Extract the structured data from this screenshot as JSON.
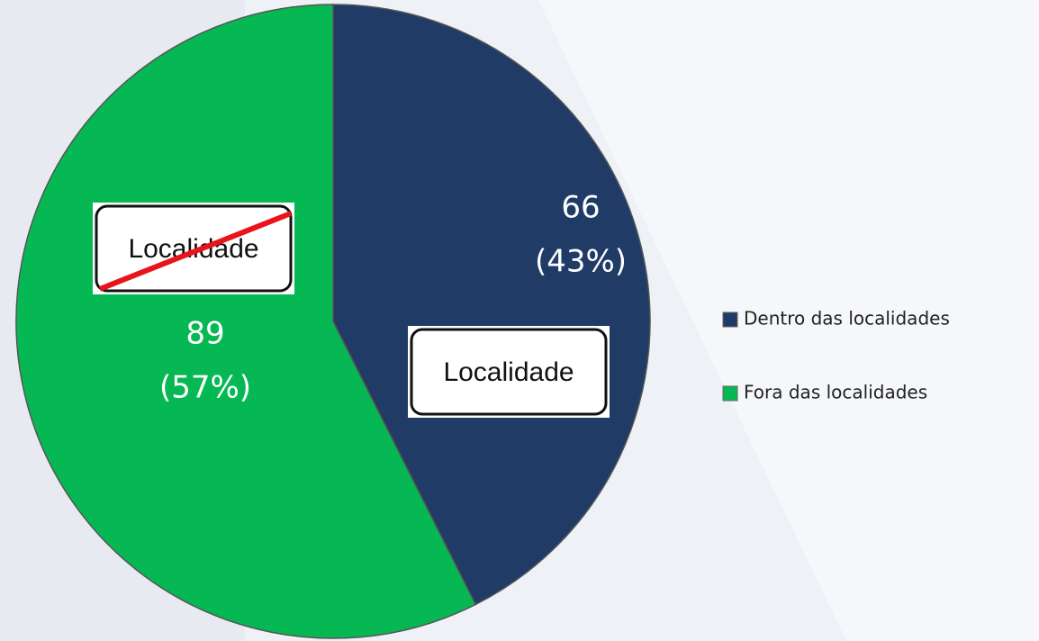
{
  "chart_data": {
    "type": "pie",
    "categories": [
      "Dentro das localidades",
      "Fora das localidades"
    ],
    "values": [
      66,
      89
    ],
    "value_labels": [
      [
        "66",
        "(43%)"
      ],
      [
        "89",
        "(57%)"
      ]
    ],
    "colors": [
      "#1f3b66",
      "#06b853"
    ],
    "annotations": [
      {
        "text": "Localidade",
        "struck": false
      },
      {
        "text": "Localidade",
        "struck": true
      }
    ],
    "legend": "right"
  }
}
